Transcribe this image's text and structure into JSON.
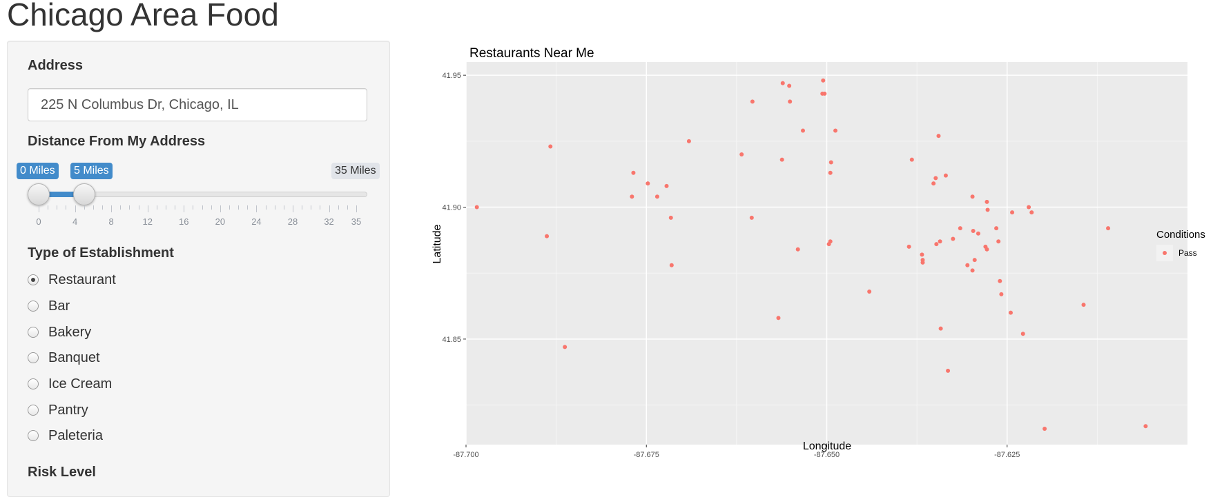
{
  "page": {
    "title": "Chicago Area Food"
  },
  "sidebar": {
    "address": {
      "label": "Address",
      "value": "225 N Columbus Dr, Chicago, IL"
    },
    "distance": {
      "label": "Distance From My Address",
      "from_label": "0 Miles",
      "to_label": "5 Miles",
      "max_label": "35 Miles",
      "min": 0,
      "max": 35,
      "from": 0,
      "to": 5,
      "grid_labels": [
        "0",
        "4",
        "8",
        "12",
        "16",
        "20",
        "24",
        "28",
        "32",
        "35"
      ],
      "accent_color": "#428bca"
    },
    "establishment": {
      "label": "Type of Establishment",
      "options": [
        {
          "label": "Restaurant",
          "checked": true
        },
        {
          "label": "Bar",
          "checked": false
        },
        {
          "label": "Bakery",
          "checked": false
        },
        {
          "label": "Banquet",
          "checked": false
        },
        {
          "label": "Ice Cream",
          "checked": false
        },
        {
          "label": "Pantry",
          "checked": false
        },
        {
          "label": "Paleteria",
          "checked": false
        }
      ]
    },
    "risk": {
      "label": "Risk Level"
    }
  },
  "chart_data": {
    "type": "scatter",
    "title": "Restaurants Near Me",
    "xlabel": "Longitude",
    "ylabel": "Latitude",
    "xlim": [
      -87.7,
      -87.6
    ],
    "ylim": [
      41.81,
      41.955
    ],
    "xticks": [
      -87.7,
      -87.675,
      -87.65,
      -87.625
    ],
    "xtick_labels": [
      "-87.700",
      "-87.675",
      "-87.650",
      "-87.625"
    ],
    "yticks": [
      41.85,
      41.9,
      41.95
    ],
    "ytick_labels": [
      "41.85",
      "41.90",
      "41.95"
    ],
    "grid": true,
    "background": "#ebebeb",
    "legend": {
      "title": "Conditions",
      "position": "right",
      "entries": [
        {
          "label": "Pass",
          "color": "#f8766d"
        }
      ]
    },
    "series": [
      {
        "name": "Pass",
        "color": "#f8766d",
        "points": [
          [
            -87.6985,
            41.9
          ],
          [
            -87.6883,
            41.923
          ],
          [
            -87.6888,
            41.889
          ],
          [
            -87.6863,
            41.847
          ],
          [
            -87.6768,
            41.913
          ],
          [
            -87.677,
            41.904
          ],
          [
            -87.6748,
            41.909
          ],
          [
            -87.6735,
            41.904
          ],
          [
            -87.6722,
            41.908
          ],
          [
            -87.6716,
            41.896
          ],
          [
            -87.6715,
            41.878
          ],
          [
            -87.6691,
            41.925
          ],
          [
            -87.6618,
            41.92
          ],
          [
            -87.6603,
            41.94
          ],
          [
            -87.6604,
            41.896
          ],
          [
            -87.6567,
            41.858
          ],
          [
            -87.6562,
            41.918
          ],
          [
            -87.6561,
            41.947
          ],
          [
            -87.6552,
            41.946
          ],
          [
            -87.6551,
            41.94
          ],
          [
            -87.654,
            41.884
          ],
          [
            -87.6533,
            41.929
          ],
          [
            -87.6505,
            41.948
          ],
          [
            -87.6506,
            41.943
          ],
          [
            -87.6503,
            41.943
          ],
          [
            -87.6497,
            41.886
          ],
          [
            -87.6495,
            41.887
          ],
          [
            -87.6494,
            41.917
          ],
          [
            -87.6495,
            41.913
          ],
          [
            -87.6488,
            41.929
          ],
          [
            -87.6441,
            41.868
          ],
          [
            -87.6386,
            41.885
          ],
          [
            -87.6382,
            41.918
          ],
          [
            -87.6368,
            41.882
          ],
          [
            -87.6367,
            41.88
          ],
          [
            -87.6367,
            41.879
          ],
          [
            -87.6352,
            41.909
          ],
          [
            -87.6349,
            41.911
          ],
          [
            -87.6348,
            41.886
          ],
          [
            -87.6345,
            41.927
          ],
          [
            -87.6343,
            41.887
          ],
          [
            -87.6342,
            41.854
          ],
          [
            -87.6335,
            41.912
          ],
          [
            -87.6332,
            41.838
          ],
          [
            -87.6325,
            41.888
          ],
          [
            -87.6315,
            41.892
          ],
          [
            -87.6305,
            41.878
          ],
          [
            -87.6298,
            41.876
          ],
          [
            -87.6298,
            41.904
          ],
          [
            -87.6297,
            41.891
          ],
          [
            -87.6295,
            41.88
          ],
          [
            -87.629,
            41.89
          ],
          [
            -87.628,
            41.885
          ],
          [
            -87.6278,
            41.884
          ],
          [
            -87.6278,
            41.902
          ],
          [
            -87.6277,
            41.899
          ],
          [
            -87.6265,
            41.892
          ],
          [
            -87.6262,
            41.887
          ],
          [
            -87.626,
            41.872
          ],
          [
            -87.6258,
            41.867
          ],
          [
            -87.6245,
            41.86
          ],
          [
            -87.6243,
            41.898
          ],
          [
            -87.6228,
            41.852
          ],
          [
            -87.622,
            41.9
          ],
          [
            -87.6216,
            41.898
          ],
          [
            -87.6198,
            41.816
          ],
          [
            -87.6144,
            41.863
          ],
          [
            -87.611,
            41.892
          ],
          [
            -87.6058,
            41.817
          ]
        ]
      }
    ]
  }
}
